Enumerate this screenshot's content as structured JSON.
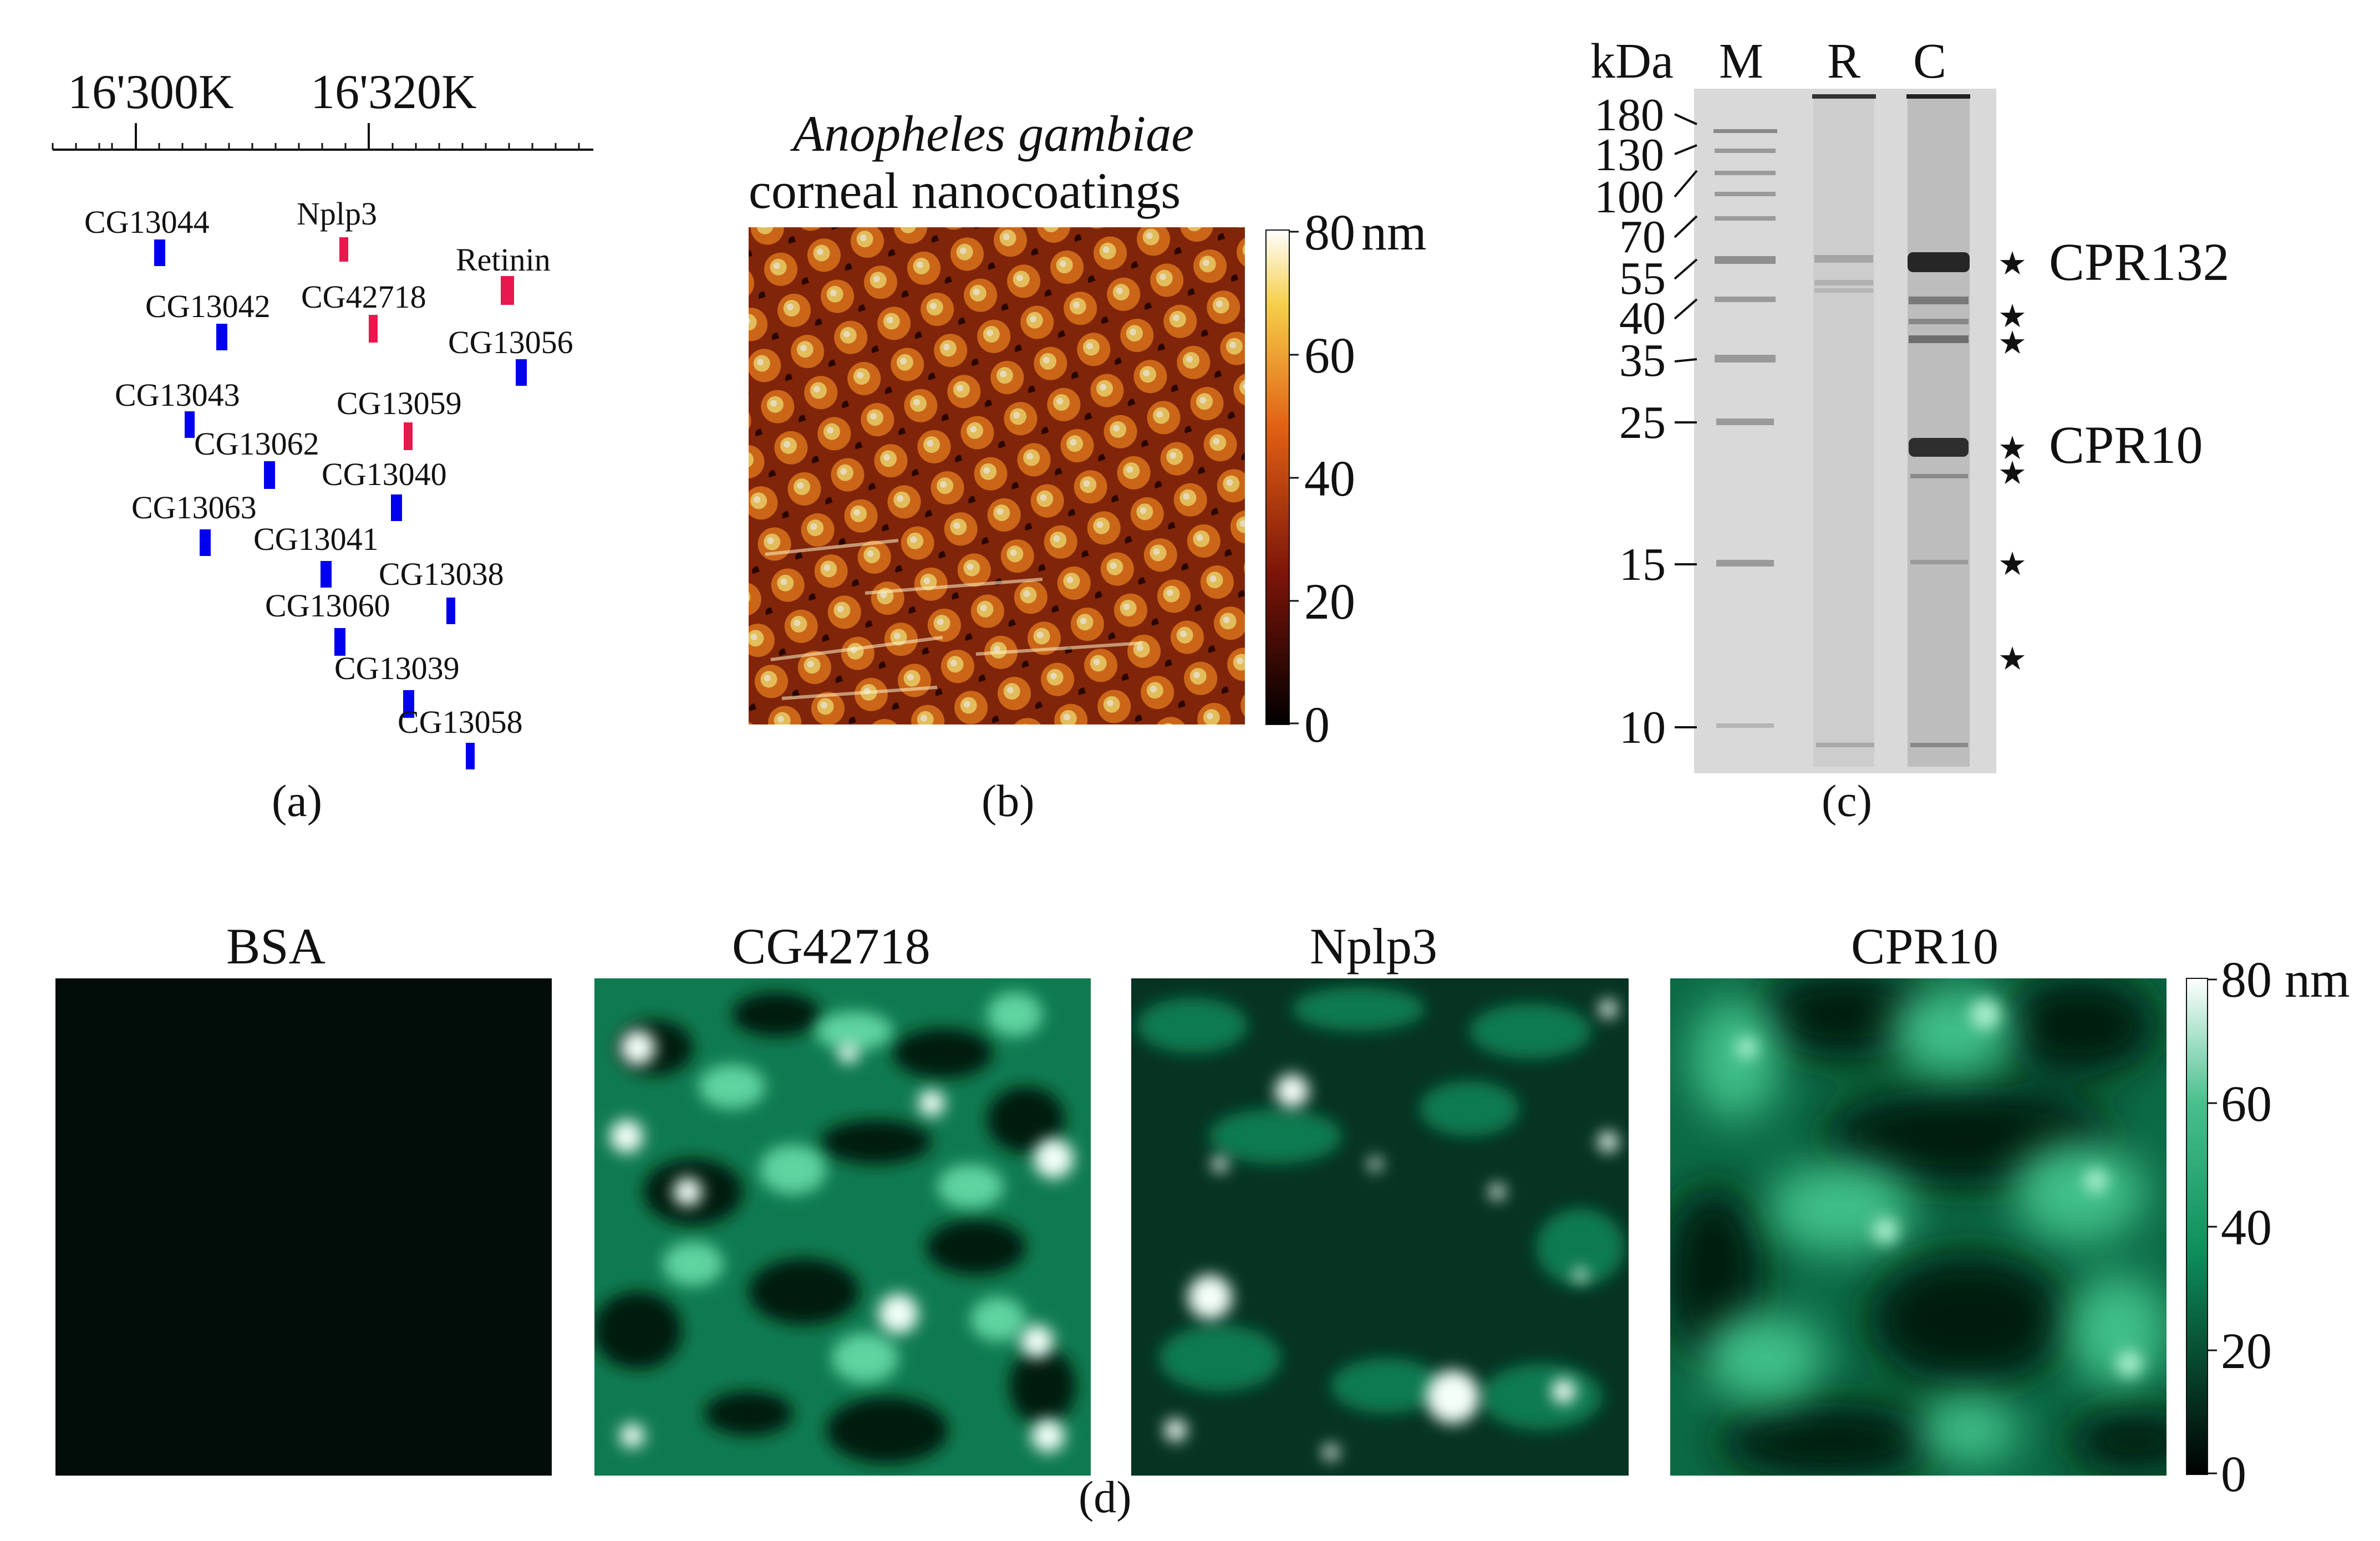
{
  "panel_a": {
    "label": "(a)",
    "axis_ticks": [
      "16'300K",
      "16'320K"
    ],
    "genes": [
      {
        "name": "CG13044",
        "color": "#0000ee"
      },
      {
        "name": "Nplp3",
        "color": "#e8174e"
      },
      {
        "name": "Retinin",
        "color": "#e8174e"
      },
      {
        "name": "CG13042",
        "color": "#0000ee"
      },
      {
        "name": "CG42718",
        "color": "#e8174e"
      },
      {
        "name": "CG13056",
        "color": "#0000ee"
      },
      {
        "name": "CG13043",
        "color": "#0000ee"
      },
      {
        "name": "CG13059",
        "color": "#e8174e"
      },
      {
        "name": "CG13062",
        "color": "#0000ee"
      },
      {
        "name": "CG13040",
        "color": "#0000ee"
      },
      {
        "name": "CG13063",
        "color": "#0000ee"
      },
      {
        "name": "CG13041",
        "color": "#0000ee"
      },
      {
        "name": "CG13038",
        "color": "#0000ee"
      },
      {
        "name": "CG13060",
        "color": "#0000ee"
      },
      {
        "name": "CG13039",
        "color": "#0000ee"
      },
      {
        "name": "CG13058",
        "color": "#0000ee"
      }
    ]
  },
  "panel_b": {
    "label": "(b)",
    "title_italic": "Anopheles gambiae",
    "title": "corneal nanocoatings",
    "colorbar": {
      "max_label": "80",
      "unit": "nm",
      "ticks": [
        "80",
        "60",
        "40",
        "20",
        "0"
      ]
    }
  },
  "panel_c": {
    "label": "(c)",
    "unit": "kDa",
    "lanes": [
      "M",
      "R",
      "C"
    ],
    "markers": [
      "180",
      "130",
      "100",
      "70",
      "55",
      "40",
      "35",
      "25",
      "15",
      "10"
    ],
    "bands": [
      "CPR132",
      "CPR10"
    ],
    "star_color": "#e8232a",
    "star_glyph": "★"
  },
  "panel_d": {
    "label": "(d)",
    "images": [
      "BSA",
      "CG42718",
      "Nplp3",
      "CPR10"
    ],
    "colorbar": {
      "max_label": "80 nm",
      "ticks": [
        "80 nm",
        "60",
        "40",
        "20",
        "0"
      ]
    }
  }
}
